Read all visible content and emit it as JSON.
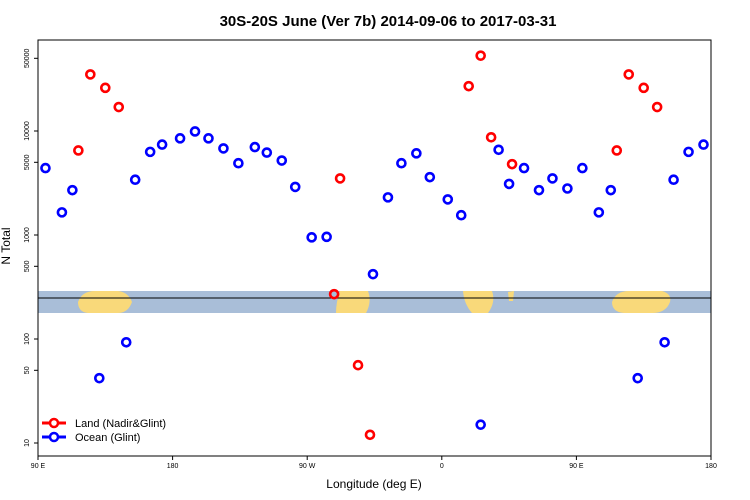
{
  "chart_data": {
    "type": "scatter",
    "title": "30S-20S June (Ver 7b)   2014-09-06 to 2017-03-31",
    "xlabel": "Longitude (deg E)",
    "ylabel": "N Total",
    "x_axis": {
      "range": [
        90,
        540
      ],
      "ticks": [
        {
          "value": 90,
          "label": "90 E"
        },
        {
          "value": 180,
          "label": "180"
        },
        {
          "value": 270,
          "label": "90 W"
        },
        {
          "value": 360,
          "label": "0"
        },
        {
          "value": 450,
          "label": "90 E"
        },
        {
          "value": 540,
          "label": "180"
        }
      ]
    },
    "y_axis": {
      "scale": "log-split",
      "upper_range": [
        300,
        80000
      ],
      "lower_range": [
        8,
        190
      ],
      "upper_ticks": [
        {
          "value": 500,
          "label": "500"
        },
        {
          "value": 1000,
          "label": "1000"
        },
        {
          "value": 5000,
          "label": "5000"
        },
        {
          "value": 10000,
          "label": "10000"
        },
        {
          "value": 50000,
          "label": "50000"
        }
      ],
      "lower_ticks": [
        {
          "value": 10,
          "label": "10"
        },
        {
          "value": 50,
          "label": "50"
        },
        {
          "value": 100,
          "label": "100"
        }
      ]
    },
    "grid": false,
    "legend": {
      "placement": "bottom-left"
    },
    "series": [
      {
        "name": "Land (Nadir&Glint)",
        "color": "#ff0000",
        "points": [
          {
            "x": 117,
            "y": 6500
          },
          {
            "x": 125,
            "y": 35000
          },
          {
            "x": 135,
            "y": 26000
          },
          {
            "x": 144,
            "y": 17000
          },
          {
            "x": 292,
            "y": 3500
          },
          {
            "x": 288,
            "y": 270
          },
          {
            "x": 304,
            "y": 56
          },
          {
            "x": 312,
            "y": 12
          },
          {
            "x": 378,
            "y": 27000
          },
          {
            "x": 386,
            "y": 53000
          },
          {
            "x": 393,
            "y": 8700
          },
          {
            "x": 407,
            "y": 4800
          },
          {
            "x": 477,
            "y": 6500
          },
          {
            "x": 485,
            "y": 35000
          },
          {
            "x": 495,
            "y": 26000
          },
          {
            "x": 504,
            "y": 17000
          }
        ]
      },
      {
        "name": "Ocean (Glint)",
        "color": "#0000ff",
        "points": [
          {
            "x": 95,
            "y": 4400
          },
          {
            "x": 106,
            "y": 1650
          },
          {
            "x": 113,
            "y": 2700
          },
          {
            "x": 131,
            "y": 42
          },
          {
            "x": 149,
            "y": 93
          },
          {
            "x": 155,
            "y": 3400
          },
          {
            "x": 165,
            "y": 6300
          },
          {
            "x": 173,
            "y": 7400
          },
          {
            "x": 185,
            "y": 8500
          },
          {
            "x": 195,
            "y": 9900
          },
          {
            "x": 204,
            "y": 8500
          },
          {
            "x": 214,
            "y": 6800
          },
          {
            "x": 224,
            "y": 4900
          },
          {
            "x": 235,
            "y": 7000
          },
          {
            "x": 243,
            "y": 6200
          },
          {
            "x": 253,
            "y": 5200
          },
          {
            "x": 262,
            "y": 2900
          },
          {
            "x": 273,
            "y": 950
          },
          {
            "x": 283,
            "y": 960
          },
          {
            "x": 314,
            "y": 420
          },
          {
            "x": 324,
            "y": 2300
          },
          {
            "x": 333,
            "y": 4900
          },
          {
            "x": 343,
            "y": 6100
          },
          {
            "x": 352,
            "y": 3600
          },
          {
            "x": 364,
            "y": 2200
          },
          {
            "x": 373,
            "y": 1550
          },
          {
            "x": 386,
            "y": 15
          },
          {
            "x": 398,
            "y": 6600
          },
          {
            "x": 405,
            "y": 3100
          },
          {
            "x": 415,
            "y": 4400
          },
          {
            "x": 425,
            "y": 2700
          },
          {
            "x": 434,
            "y": 3500
          },
          {
            "x": 444,
            "y": 2800
          },
          {
            "x": 454,
            "y": 4400
          },
          {
            "x": 465,
            "y": 1650
          },
          {
            "x": 473,
            "y": 2700
          },
          {
            "x": 491,
            "y": 42
          },
          {
            "x": 509,
            "y": 93
          },
          {
            "x": 515,
            "y": 3400
          },
          {
            "x": 525,
            "y": 6300
          },
          {
            "x": 535,
            "y": 7400
          }
        ]
      }
    ]
  }
}
